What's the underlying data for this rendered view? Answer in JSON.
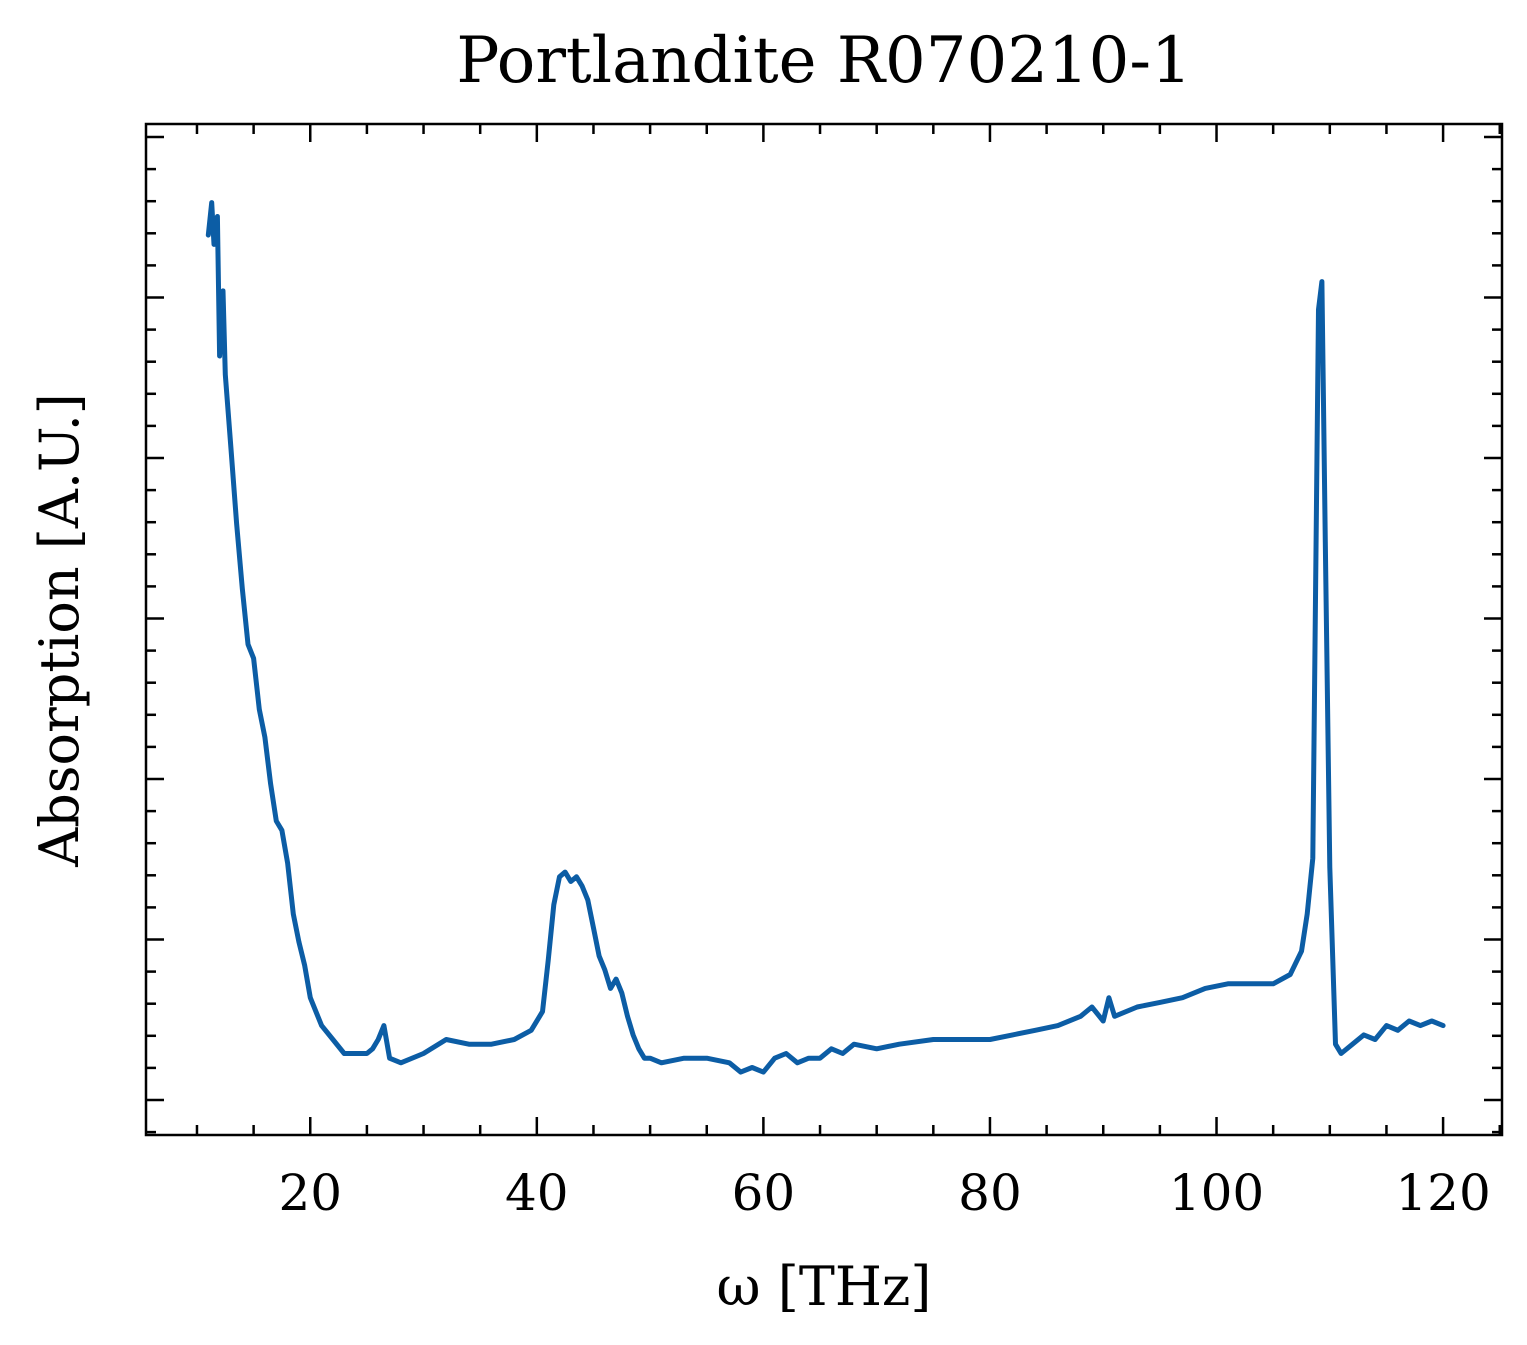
{
  "chart_data": {
    "type": "line",
    "title": "Portlandite R070210-1",
    "xlabel": "ω [THz]",
    "ylabel": "Absorption [A.U.]",
    "xlim": [
      5.5,
      125.2
    ],
    "ylim": [
      0,
      1
    ],
    "x_ticks": [
      20,
      40,
      60,
      80,
      100,
      120
    ],
    "x_tick_labels": [
      "20",
      "40",
      "60",
      "80",
      "100",
      "120"
    ],
    "y_tick_labels_shown": false,
    "grid": false,
    "line_color": "#0C5DA5",
    "series": [
      {
        "x": [
          11.0,
          11.3,
          11.5,
          11.8,
          12.0,
          12.3,
          12.5,
          13.0,
          13.5,
          14.0,
          14.5,
          15.0,
          15.5,
          16.0,
          16.5,
          17.0,
          17.5,
          18.0,
          18.5,
          19.0,
          19.5,
          20.0,
          21.0,
          22.0,
          23.0,
          24.0,
          25.0,
          25.5,
          26.0,
          26.5,
          27.0,
          28.0,
          30.0,
          32.0,
          34.0,
          36.0,
          38.0,
          39.5,
          40.5,
          41.0,
          41.5,
          42.0,
          42.5,
          43.0,
          43.5,
          44.0,
          44.5,
          45.0,
          45.5,
          46.0,
          46.5,
          47.0,
          47.5,
          48.0,
          48.5,
          49.0,
          49.5,
          50.0,
          51.0,
          53.0,
          55.0,
          57.0,
          58.0,
          59.0,
          60.0,
          61.0,
          62.0,
          63.0,
          64.0,
          65.0,
          66.0,
          67.0,
          68.0,
          70.0,
          72.0,
          75.0,
          78.0,
          80.0,
          82.0,
          84.0,
          86.0,
          88.0,
          89.0,
          90.0,
          90.5,
          91.0,
          93.0,
          95.0,
          97.0,
          99.0,
          101.0,
          103.0,
          105.0,
          106.5,
          107.5,
          108.0,
          108.5,
          109.0,
          109.3,
          109.6,
          110.0,
          110.5,
          111.0,
          112.0,
          113.0,
          114.0,
          115.0,
          116.0,
          117.0,
          118.0,
          119.0,
          120.0
        ],
        "y": [
          0.93,
          0.965,
          0.92,
          0.95,
          0.8,
          0.87,
          0.78,
          0.7,
          0.62,
          0.55,
          0.49,
          0.475,
          0.42,
          0.39,
          0.34,
          0.3,
          0.29,
          0.255,
          0.2,
          0.17,
          0.145,
          0.11,
          0.08,
          0.065,
          0.05,
          0.05,
          0.05,
          0.055,
          0.065,
          0.08,
          0.045,
          0.04,
          0.05,
          0.065,
          0.06,
          0.06,
          0.065,
          0.075,
          0.095,
          0.15,
          0.21,
          0.24,
          0.245,
          0.235,
          0.24,
          0.23,
          0.215,
          0.185,
          0.155,
          0.14,
          0.12,
          0.13,
          0.115,
          0.09,
          0.07,
          0.055,
          0.045,
          0.045,
          0.04,
          0.045,
          0.045,
          0.04,
          0.03,
          0.035,
          0.03,
          0.045,
          0.05,
          0.04,
          0.045,
          0.045,
          0.055,
          0.05,
          0.06,
          0.055,
          0.06,
          0.065,
          0.065,
          0.065,
          0.07,
          0.075,
          0.08,
          0.09,
          0.1,
          0.085,
          0.11,
          0.09,
          0.1,
          0.105,
          0.11,
          0.12,
          0.125,
          0.125,
          0.125,
          0.135,
          0.16,
          0.2,
          0.26,
          0.85,
          0.88,
          0.6,
          0.25,
          0.06,
          0.05,
          0.06,
          0.07,
          0.065,
          0.08,
          0.075,
          0.085,
          0.08,
          0.085,
          0.08
        ]
      }
    ]
  }
}
